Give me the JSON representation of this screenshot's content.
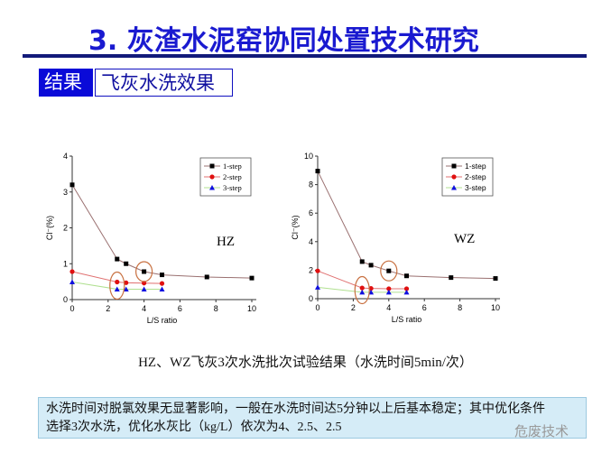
{
  "header": {
    "title": "3. 灰渣水泥窑协同处置技术研究",
    "tag_label": "结果",
    "tag_subject": "飞灰水洗效果"
  },
  "caption": "HZ、WZ飞灰3次水洗批次试验结果（水洗时间5min/次）",
  "note": {
    "line1": "水洗时间对脱氯效果无显著影响，一般在水洗时间达5分钟以上后基本稳定；其中优化条件",
    "line2": "选择3次水洗，优化水灰比（kg/L）依次为4、2.5、2.5"
  },
  "watermark": "危废技术",
  "chart_data": [
    {
      "type": "line",
      "label": "HZ",
      "xlabel": "L/S ratio",
      "ylabel": "Cl⁻(%)",
      "xlim": [
        0,
        10
      ],
      "ylim": [
        0,
        4
      ],
      "xticks": [
        0,
        2,
        4,
        6,
        8,
        10
      ],
      "yticks": [
        0,
        1,
        2,
        3,
        4
      ],
      "legend": "top-right",
      "series": [
        {
          "name": "1-step",
          "x": [
            0,
            2.5,
            3,
            4,
            5,
            7.5,
            10
          ],
          "values": [
            3.2,
            1.13,
            1.0,
            0.78,
            0.69,
            0.63,
            0.6
          ],
          "color": "#000000",
          "line": "#9a7070",
          "marker": "square"
        },
        {
          "name": "2-step",
          "x": [
            0,
            2.5,
            3,
            4,
            5
          ],
          "values": [
            0.78,
            0.49,
            0.47,
            0.46,
            0.45
          ],
          "color": "#e01010",
          "line": "#e07070",
          "marker": "circle"
        },
        {
          "name": "3-step",
          "x": [
            0,
            2.5,
            3,
            4,
            5
          ],
          "values": [
            0.49,
            0.29,
            0.29,
            0.29,
            0.29
          ],
          "color": "#1010e0",
          "line": "#b0e090",
          "marker": "triangle"
        }
      ],
      "highlights": [
        {
          "x": 2.5,
          "y": 0.39
        },
        {
          "x": 4,
          "y": 0.78
        }
      ]
    },
    {
      "type": "line",
      "label": "WZ",
      "xlabel": "L/S ratio",
      "ylabel": "Cl⁻(%)",
      "xlim": [
        0,
        10
      ],
      "ylim": [
        0,
        10
      ],
      "xticks": [
        0,
        2,
        4,
        6,
        8,
        10
      ],
      "yticks": [
        0,
        2,
        4,
        6,
        8,
        10
      ],
      "legend": "top-right",
      "series": [
        {
          "name": "1-step",
          "x": [
            0,
            2.5,
            3,
            4,
            5,
            7.5,
            10
          ],
          "values": [
            8.95,
            2.6,
            2.35,
            1.95,
            1.6,
            1.48,
            1.42
          ],
          "color": "#000000",
          "line": "#9a7070",
          "marker": "square"
        },
        {
          "name": "2-step",
          "x": [
            0,
            2.5,
            3,
            4,
            5
          ],
          "values": [
            1.95,
            0.75,
            0.72,
            0.7,
            0.7
          ],
          "color": "#e01010",
          "line": "#e07070",
          "marker": "circle"
        },
        {
          "name": "3-step",
          "x": [
            0,
            2.5,
            3,
            4,
            5
          ],
          "values": [
            0.8,
            0.45,
            0.45,
            0.45,
            0.45
          ],
          "color": "#1010e0",
          "line": "#b0e090",
          "marker": "triangle"
        }
      ],
      "highlights": [
        {
          "x": 2.5,
          "y": 0.6
        },
        {
          "x": 4,
          "y": 1.95
        }
      ]
    }
  ]
}
